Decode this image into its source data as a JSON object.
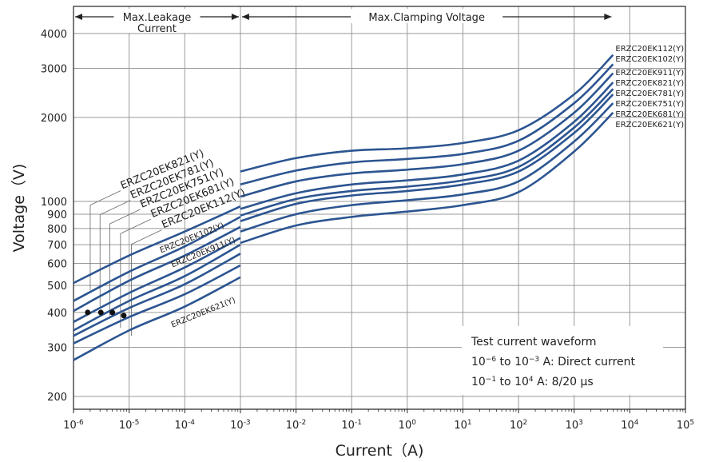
{
  "chart_data": {
    "type": "line",
    "x_scale": "log",
    "y_scale": "log",
    "xlim": [
      1e-06,
      100000.0
    ],
    "ylim": [
      180,
      5000
    ],
    "xlabel": "Current（A)",
    "ylabel": "Voltage（V)",
    "x_ticks": [
      {
        "v": 1e-06,
        "base": "10",
        "exp": "-6"
      },
      {
        "v": 1e-05,
        "base": "10",
        "exp": "-5"
      },
      {
        "v": 0.0001,
        "base": "10",
        "exp": "-4"
      },
      {
        "v": 0.001,
        "base": "10",
        "exp": "-3"
      },
      {
        "v": 0.01,
        "base": "10",
        "exp": "-2"
      },
      {
        "v": 0.1,
        "base": "10",
        "exp": "-1"
      },
      {
        "v": 1,
        "base": "10",
        "exp": "0"
      },
      {
        "v": 10,
        "base": "10",
        "exp": "1"
      },
      {
        "v": 100,
        "base": "10",
        "exp": "2"
      },
      {
        "v": 1000,
        "base": "10",
        "exp": "3"
      },
      {
        "v": 10000,
        "base": "10",
        "exp": "4"
      },
      {
        "v": 100000,
        "base": "10",
        "exp": "5"
      }
    ],
    "y_ticks": [
      {
        "v": 200,
        "label": "200"
      },
      {
        "v": 300,
        "label": "300"
      },
      {
        "v": 400,
        "label": "400"
      },
      {
        "v": 500,
        "label": "500"
      },
      {
        "v": 600,
        "label": "600"
      },
      {
        "v": 700,
        "label": "700"
      },
      {
        "v": 800,
        "label": "800"
      },
      {
        "v": 900,
        "label": "900"
      },
      {
        "v": 1000,
        "label": "1000"
      },
      {
        "v": 2000,
        "label": "2000"
      },
      {
        "v": 3000,
        "label": "3000"
      },
      {
        "v": 4000,
        "label": "4000"
      }
    ],
    "grid": true,
    "regions": [
      {
        "label_line1": "Max.Leakage",
        "label_line2": "Current",
        "x_from": 1e-06,
        "x_to": 0.001
      },
      {
        "label_line1": "Max.Clamping Voltage",
        "label_line2": "",
        "x_from": 0.001,
        "x_to": 5000
      }
    ],
    "leakage_series": [
      {
        "name": "ERZC20EK821(Y)",
        "points": [
          [
            1e-06,
            510
          ],
          [
            1e-05,
            640
          ],
          [
            0.0001,
            780
          ],
          [
            0.001,
            960
          ]
        ]
      },
      {
        "name": "ERZC20EK781(Y)",
        "points": [
          [
            1e-06,
            440
          ],
          [
            1e-05,
            560
          ],
          [
            0.0001,
            690
          ],
          [
            0.001,
            880
          ]
        ]
      },
      {
        "name": "ERZC20EK751(Y)",
        "points": [
          [
            1e-06,
            405
          ],
          [
            1e-05,
            520
          ],
          [
            0.0001,
            640
          ],
          [
            0.001,
            810
          ]
        ]
      },
      {
        "name": "ERZC20EK681(Y)",
        "points": [
          [
            1e-06,
            370
          ],
          [
            1e-05,
            470
          ],
          [
            0.0001,
            580
          ],
          [
            0.001,
            740
          ]
        ]
      },
      {
        "name": "ERZC20EK112(Y)",
        "points": [
          [
            1e-06,
            345
          ],
          [
            1e-05,
            440
          ],
          [
            0.0001,
            540
          ],
          [
            0.001,
            700
          ]
        ]
      },
      {
        "name": "ERZC20EK102(Y)",
        "points": [
          [
            1e-06,
            330
          ],
          [
            1e-05,
            415
          ],
          [
            0.0001,
            505
          ],
          [
            0.001,
            650
          ]
        ]
      },
      {
        "name": "ERZC20EK911(Y)",
        "points": [
          [
            1e-06,
            310
          ],
          [
            1e-05,
            385
          ],
          [
            0.0001,
            465
          ],
          [
            0.001,
            590
          ]
        ]
      },
      {
        "name": "ERZC20EK621(Y)",
        "points": [
          [
            1e-06,
            270
          ],
          [
            1e-05,
            345
          ],
          [
            0.0001,
            420
          ],
          [
            0.001,
            535
          ]
        ]
      }
    ],
    "leakage_dots": [
      {
        "x": 1.8e-06,
        "y": 400
      },
      {
        "x": 3.1e-06,
        "y": 400
      },
      {
        "x": 5e-06,
        "y": 400
      },
      {
        "x": 8e-06,
        "y": 390
      }
    ],
    "clamp_series": [
      {
        "name": "ERZC20EK112(Y)",
        "points": [
          [
            0.001,
            1280
          ],
          [
            0.01,
            1430
          ],
          [
            0.1,
            1520
          ],
          [
            1,
            1550
          ],
          [
            10,
            1620
          ],
          [
            100,
            1800
          ],
          [
            1000,
            2420
          ],
          [
            5000,
            3350
          ]
        ]
      },
      {
        "name": "ERZC20EK102(Y)",
        "points": [
          [
            0.001,
            1150
          ],
          [
            0.01,
            1290
          ],
          [
            0.1,
            1380
          ],
          [
            1,
            1420
          ],
          [
            10,
            1480
          ],
          [
            100,
            1650
          ],
          [
            1000,
            2250
          ],
          [
            5000,
            3100
          ]
        ]
      },
      {
        "name": "ERZC20EK911(Y)",
        "points": [
          [
            0.001,
            1040
          ],
          [
            0.01,
            1180
          ],
          [
            0.1,
            1260
          ],
          [
            1,
            1300
          ],
          [
            10,
            1360
          ],
          [
            100,
            1520
          ],
          [
            1000,
            2080
          ],
          [
            5000,
            2880
          ]
        ]
      },
      {
        "name": "ERZC20EK821(Y)",
        "points": [
          [
            0.001,
            940
          ],
          [
            0.01,
            1070
          ],
          [
            0.1,
            1150
          ],
          [
            1,
            1190
          ],
          [
            10,
            1250
          ],
          [
            100,
            1400
          ],
          [
            1000,
            1930
          ],
          [
            5000,
            2670
          ]
        ]
      },
      {
        "name": "ERZC20EK781(Y)",
        "points": [
          [
            0.001,
            890
          ],
          [
            0.01,
            1020
          ],
          [
            0.1,
            1090
          ],
          [
            1,
            1130
          ],
          [
            10,
            1190
          ],
          [
            100,
            1330
          ],
          [
            1000,
            1840
          ],
          [
            5000,
            2530
          ]
        ]
      },
      {
        "name": "ERZC20EK751(Y)",
        "points": [
          [
            0.001,
            850
          ],
          [
            0.01,
            980
          ],
          [
            0.1,
            1050
          ],
          [
            1,
            1090
          ],
          [
            10,
            1150
          ],
          [
            100,
            1280
          ],
          [
            1000,
            1760
          ],
          [
            5000,
            2420
          ]
        ]
      },
      {
        "name": "ERZC20EK681(Y)",
        "points": [
          [
            0.001,
            780
          ],
          [
            0.01,
            900
          ],
          [
            0.1,
            970
          ],
          [
            1,
            1010
          ],
          [
            10,
            1060
          ],
          [
            100,
            1180
          ],
          [
            1000,
            1640
          ],
          [
            5000,
            2250
          ]
        ]
      },
      {
        "name": "ERZC20EK621(Y)",
        "points": [
          [
            0.001,
            710
          ],
          [
            0.01,
            820
          ],
          [
            0.1,
            880
          ],
          [
            1,
            920
          ],
          [
            10,
            970
          ],
          [
            100,
            1080
          ],
          [
            1000,
            1510
          ],
          [
            5000,
            2080
          ]
        ]
      }
    ],
    "left_labels": [
      {
        "text": "ERZC20EK821(Y)",
        "x": 2e-06,
        "y": 1050
      },
      {
        "text": "ERZC20EK781(Y)",
        "x": 3e-06,
        "y": 970
      },
      {
        "text": "ERZC20EK751(Y)",
        "x": 4.5e-06,
        "y": 900
      },
      {
        "text": "ERZC20EK681(Y)",
        "x": 7e-06,
        "y": 830
      },
      {
        "text": "ERZC20EK112(Y)",
        "x": 1.1e-05,
        "y": 760
      },
      {
        "text": "ERZC20EK102(Y)",
        "x": 1e-05,
        "y": 620
      },
      {
        "text": "ERZC20EK911(Y)",
        "x": 1.6e-05,
        "y": 550
      },
      {
        "text": "ERZC20EK621(Y)",
        "x": 1.6e-05,
        "y": 335
      }
    ],
    "right_labels": [
      "ERZC20EK112(Y)",
      "ERZC20EK102(Y)",
      "ERZC20EK911(Y)",
      "ERZC20EK821(Y)",
      "ERZC20EK781(Y)",
      "ERZC20EK751(Y)",
      "ERZC20EK681(Y)",
      "ERZC20EK621(Y)"
    ],
    "note": {
      "line1": "Test current waveform",
      "line2_pre": "10",
      "line2_exp1": "−6",
      "line2_mid": " to 10",
      "line2_exp2": "−3",
      "line2_post": " A: Direct current",
      "line3_pre": "10",
      "line3_exp1": "−1",
      "line3_mid": " to 10",
      "line3_exp2": "4",
      "line3_post": " A: 8/20 μs"
    },
    "colors": {
      "curve": "#2c5591",
      "grid_major": "#9a9a9a",
      "grid_minor": "#c8c8c8",
      "axis": "#222222",
      "leader": "#666666"
    }
  }
}
